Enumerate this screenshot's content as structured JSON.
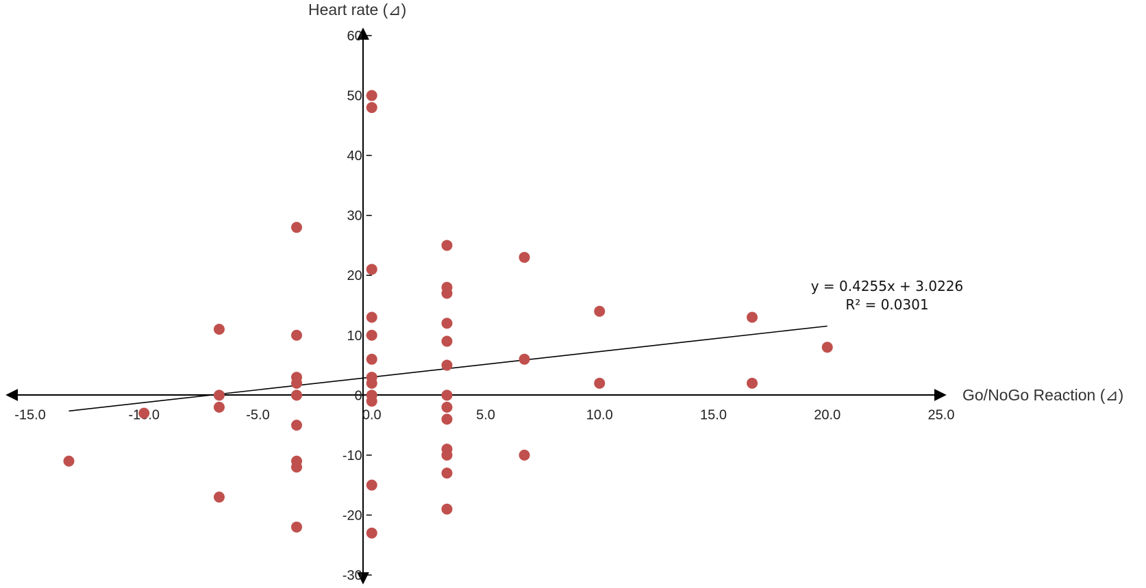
{
  "chart_data": {
    "type": "scatter",
    "title": "",
    "xlabel": "Go/NoGo Reaction (⊿)",
    "ylabel": "Heart rate (⊿)",
    "xlim": [
      -15,
      25
    ],
    "ylim": [
      -30,
      60
    ],
    "x_ticks": [
      "-15.0",
      "-10.0",
      "-5.0",
      "0.0",
      "5.0",
      "10.0",
      "15.0",
      "20.0",
      "25.0"
    ],
    "y_ticks": [
      "-30",
      "-20",
      "-10",
      "0",
      "10",
      "20",
      "30",
      "40",
      "50",
      "60"
    ],
    "grid": false,
    "legend": "none",
    "marker_color": "#c0504d",
    "line_color": "#000000",
    "points": [
      {
        "x": -13.3,
        "y": -11
      },
      {
        "x": -10.0,
        "y": -3
      },
      {
        "x": -6.7,
        "y": 11
      },
      {
        "x": -6.7,
        "y": 0
      },
      {
        "x": -6.7,
        "y": -2
      },
      {
        "x": -6.7,
        "y": -17
      },
      {
        "x": -3.3,
        "y": 28
      },
      {
        "x": -3.3,
        "y": 10
      },
      {
        "x": -3.3,
        "y": 3
      },
      {
        "x": -3.3,
        "y": 2
      },
      {
        "x": -3.3,
        "y": 0
      },
      {
        "x": -3.3,
        "y": -5
      },
      {
        "x": -3.3,
        "y": -11
      },
      {
        "x": -3.3,
        "y": -12
      },
      {
        "x": -3.3,
        "y": -22
      },
      {
        "x": 0.0,
        "y": 50
      },
      {
        "x": 0.0,
        "y": 48
      },
      {
        "x": 0.0,
        "y": 21
      },
      {
        "x": 0.0,
        "y": 13
      },
      {
        "x": 0.0,
        "y": 10
      },
      {
        "x": 0.0,
        "y": 6
      },
      {
        "x": 0.0,
        "y": 3
      },
      {
        "x": 0.0,
        "y": 2
      },
      {
        "x": 0.0,
        "y": 0
      },
      {
        "x": 0.0,
        "y": -1
      },
      {
        "x": 0.0,
        "y": -15
      },
      {
        "x": 0.0,
        "y": -23
      },
      {
        "x": 3.3,
        "y": 25
      },
      {
        "x": 3.3,
        "y": 18
      },
      {
        "x": 3.3,
        "y": 17
      },
      {
        "x": 3.3,
        "y": 12
      },
      {
        "x": 3.3,
        "y": 9
      },
      {
        "x": 3.3,
        "y": 5
      },
      {
        "x": 3.3,
        "y": 0
      },
      {
        "x": 3.3,
        "y": -2
      },
      {
        "x": 3.3,
        "y": -4
      },
      {
        "x": 3.3,
        "y": -9
      },
      {
        "x": 3.3,
        "y": -10
      },
      {
        "x": 3.3,
        "y": -13
      },
      {
        "x": 3.3,
        "y": -19
      },
      {
        "x": 6.7,
        "y": 23
      },
      {
        "x": 6.7,
        "y": 6
      },
      {
        "x": 6.7,
        "y": -10
      },
      {
        "x": 10.0,
        "y": 14
      },
      {
        "x": 10.0,
        "y": 2
      },
      {
        "x": 16.7,
        "y": 13
      },
      {
        "x": 16.7,
        "y": 2
      },
      {
        "x": 20.0,
        "y": 8
      }
    ],
    "trendline": {
      "slope": 0.4255,
      "intercept": 3.0226,
      "x_range": [
        -13.3,
        20.0
      ],
      "equation": "y = 0.4255x + 3.0226",
      "r_squared": "R² = 0.0301"
    }
  }
}
